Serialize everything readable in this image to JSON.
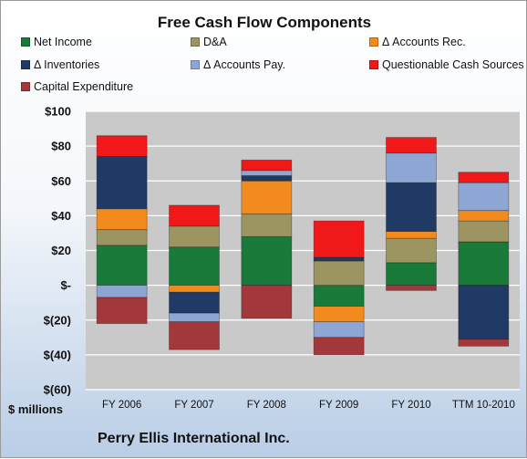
{
  "chart_data": {
    "type": "bar",
    "stacked": true,
    "title": "Free Cash Flow Components",
    "xlabel": "",
    "ylabel": "$ millions",
    "company": "Perry Ellis International Inc.",
    "categories": [
      "FY 2006",
      "FY 2007",
      "FY 2008",
      "FY 2009",
      "FY 2010",
      "TTM 10-2010"
    ],
    "ylim": [
      -60,
      100
    ],
    "yticks": [
      100,
      80,
      60,
      40,
      20,
      0,
      -20,
      -40,
      -60
    ],
    "ytick_labels": [
      "$100",
      "$80",
      "$60",
      "$40",
      "$20",
      "$-",
      "$(20)",
      "$(40)",
      "$(60)"
    ],
    "grid": true,
    "legend_position": "top",
    "series": [
      {
        "name": "Net Income",
        "color": "#1a7a3a",
        "values": [
          23,
          22,
          28,
          -12,
          13,
          25
        ]
      },
      {
        "name": "D&A",
        "color": "#9c9461",
        "values": [
          9,
          12,
          13,
          14,
          14,
          12
        ]
      },
      {
        "name": "Δ Accounts Rec.",
        "color": "#f28a1e",
        "values": [
          12,
          -4,
          19,
          -9,
          4,
          6
        ]
      },
      {
        "name": "Δ Inventories",
        "color": "#1f3a64",
        "values": [
          30,
          -12,
          3,
          2,
          28,
          -31
        ]
      },
      {
        "name": "Δ Accounts Pay.",
        "color": "#8ea6d4",
        "values": [
          -7,
          -5,
          3,
          -9,
          17,
          16
        ]
      },
      {
        "name": "Questionable Cash Sources",
        "color": "#f01818",
        "values": [
          12,
          12,
          6,
          21,
          9,
          6
        ]
      },
      {
        "name": "Capital Expenditure",
        "color": "#a3383a",
        "values": [
          -15,
          -16,
          -19,
          -10,
          -3,
          -4
        ]
      }
    ]
  }
}
